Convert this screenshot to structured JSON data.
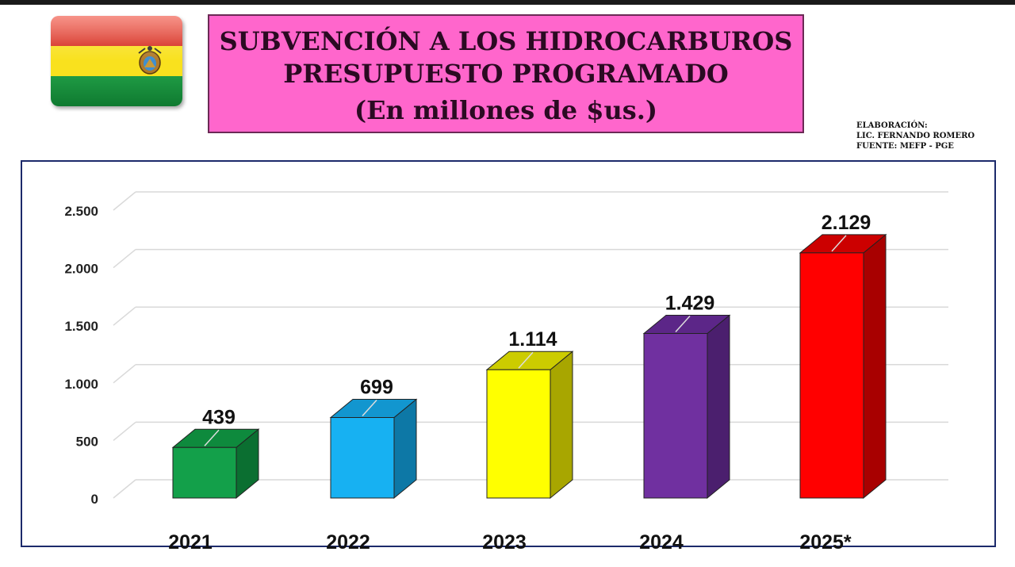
{
  "header": {
    "title_line1": "SUBVENCIÓN A LOS HIDROCARBUROS",
    "title_line2": "PRESUPUESTO PROGRAMADO",
    "title_line3": "(En millones de $us.)",
    "credit_line1": "ELABORACIÓN:",
    "credit_line2": "LIC. FERNANDO ROMERO",
    "credit_line3": "FUENTE: MEFP - PGE"
  },
  "flag": {
    "name": "bolivia-flag-icon",
    "colors": [
      "#d52b1e",
      "#f9e11e",
      "#007934"
    ]
  },
  "chart_data": {
    "type": "bar",
    "title": "",
    "xlabel": "",
    "ylabel": "",
    "categories": [
      "2021",
      "2022",
      "2023",
      "2024",
      "2025*"
    ],
    "values": [
      439,
      699,
      1114,
      1429,
      2129
    ],
    "value_labels": [
      "439",
      "699",
      "1.114",
      "1.429",
      "2.129"
    ],
    "ylim": [
      0,
      2500
    ],
    "yticks": [
      0,
      500,
      1000,
      1500,
      2000,
      2500
    ],
    "ytick_labels": [
      "0",
      "500",
      "1.000",
      "1.500",
      "2.000",
      "2.500"
    ],
    "grid": true,
    "style": "3d",
    "colors": [
      {
        "front": "#13a04a",
        "side": "#0b6f31",
        "top": "#0e8a3d"
      },
      {
        "front": "#17b1f2",
        "side": "#0d78a6",
        "top": "#1296cf"
      },
      {
        "front": "#ffff00",
        "side": "#a8a600",
        "top": "#cccc00"
      },
      {
        "front": "#7030a0",
        "side": "#4b1f6e",
        "top": "#5c2688"
      },
      {
        "front": "#ff0000",
        "side": "#a80000",
        "top": "#cc0000"
      }
    ]
  }
}
